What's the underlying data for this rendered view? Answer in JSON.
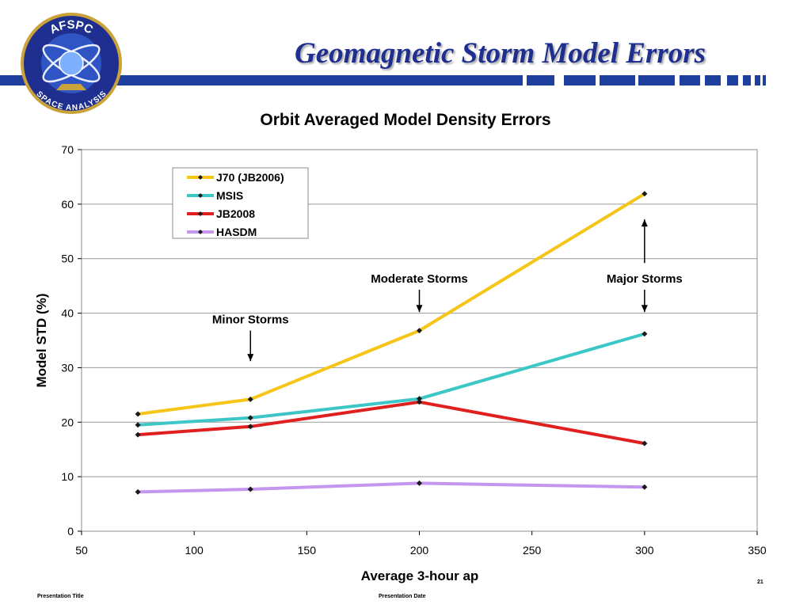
{
  "slide": {
    "title": "Geomagnetic Storm Model Errors",
    "logo": {
      "top_text": "AFSPC",
      "bottom_text": "SPACE ANALYSIS"
    },
    "footer_left": "Presentation Title",
    "footer_center": "Presentation Date",
    "page_number": "21"
  },
  "colors": {
    "band": "#1f3f9e",
    "title": "#1f2f8f"
  },
  "chart_data": {
    "type": "line",
    "title": "Orbit Averaged Model Density Errors",
    "xlabel": "Average 3-hour ap",
    "ylabel": "Model STD (%)",
    "xlim": [
      50,
      350
    ],
    "ylim": [
      0,
      70
    ],
    "xticks": [
      "50",
      "100",
      "150",
      "200",
      "250",
      "300",
      "350"
    ],
    "yticks": [
      "0",
      "10",
      "20",
      "30",
      "40",
      "50",
      "60",
      "70"
    ],
    "grid": "horizontal",
    "legend_position": "top-left",
    "x": [
      75,
      125,
      200,
      300
    ],
    "series": [
      {
        "name": "J70 (JB2006)",
        "color": "#f5c518",
        "values": [
          21.5,
          24.2,
          36.8,
          61.9
        ]
      },
      {
        "name": "MSIS",
        "color": "#3cc6c6",
        "values": [
          19.5,
          20.8,
          24.3,
          36.2
        ]
      },
      {
        "name": "JB2008",
        "color": "#e01f1f",
        "values": [
          17.7,
          19.2,
          23.7,
          16.1
        ]
      },
      {
        "name": "HASDM",
        "color": "#c596ef",
        "values": [
          7.2,
          7.7,
          8.8,
          8.1
        ]
      }
    ],
    "annotations": [
      {
        "text": "Minor Storms",
        "x": 125,
        "arrow_from": 36.8,
        "arrow_to": 31.2
      },
      {
        "text": "Moderate Storms",
        "x": 200,
        "arrow_from": 44.3,
        "arrow_to": 40.2
      },
      {
        "text": "Major Storms",
        "x": 300,
        "arrow_from": 44.3,
        "arrow_to": 40.2
      },
      {
        "text": "",
        "x": 300,
        "arrow_from": 49.2,
        "arrow_to": 57.2
      }
    ]
  }
}
